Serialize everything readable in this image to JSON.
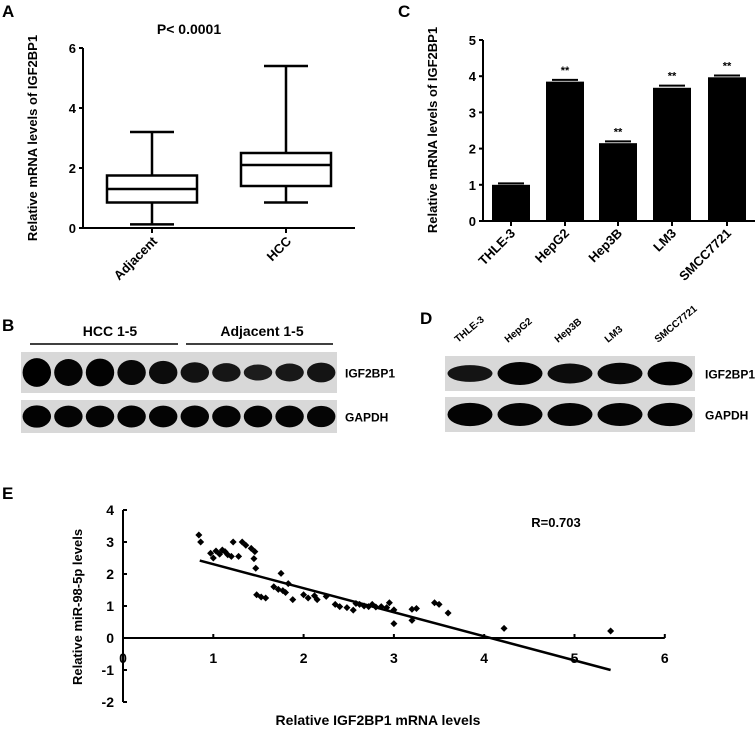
{
  "panels": {
    "A": {
      "letter": "A"
    },
    "B": {
      "letter": "B"
    },
    "C": {
      "letter": "C"
    },
    "D": {
      "letter": "D"
    },
    "E": {
      "letter": "E"
    }
  },
  "chart_data": [
    {
      "panel": "A",
      "type": "box",
      "title": "P< 0.0001",
      "xlabel": "",
      "ylabel": "Relative mRNA levels of IGF2BP1",
      "ylim": [
        0,
        6
      ],
      "yticks": [
        0,
        2,
        4,
        6
      ],
      "categories": [
        "Adjacent",
        "HCC"
      ],
      "boxes": [
        {
          "name": "Adjacent",
          "min": 0.12,
          "q1": 0.85,
          "median": 1.3,
          "q3": 1.75,
          "max": 3.2
        },
        {
          "name": "HCC",
          "min": 0.85,
          "q1": 1.4,
          "median": 2.1,
          "q3": 2.5,
          "max": 5.4
        }
      ]
    },
    {
      "panel": "C",
      "type": "bar",
      "title": "",
      "xlabel": "",
      "ylabel": "Relative mRNA levels of IGF2BP1",
      "ylim": [
        0,
        5
      ],
      "yticks": [
        0,
        1,
        2,
        3,
        4,
        5
      ],
      "categories": [
        "THLE-3",
        "HepG2",
        "Hep3B",
        "LM3",
        "SMCC7721"
      ],
      "values": [
        1.0,
        3.85,
        2.15,
        3.68,
        3.97
      ],
      "errors": [
        0.04,
        0.05,
        0.05,
        0.06,
        0.05
      ],
      "annotations": [
        "",
        "**",
        "**",
        "**",
        "**"
      ]
    },
    {
      "panel": "B",
      "type": "western_blot",
      "group_labels": [
        "HCC 1-5",
        "Adjacent 1-5"
      ],
      "rows": [
        {
          "label": "IGF2BP1",
          "intensities": [
            1.0,
            0.9,
            0.95,
            0.8,
            0.7,
            0.55,
            0.45,
            0.3,
            0.4,
            0.5
          ]
        },
        {
          "label": "GAPDH",
          "intensities": [
            0.95,
            0.9,
            0.9,
            0.92,
            0.9,
            0.92,
            0.9,
            0.9,
            0.9,
            0.88
          ]
        }
      ]
    },
    {
      "panel": "D",
      "type": "western_blot",
      "lane_labels": [
        "THLE-3",
        "HepG2",
        "Hep3B",
        "LM3",
        "SMCC7721"
      ],
      "rows": [
        {
          "label": "IGF2BP1",
          "intensities": [
            0.5,
            0.9,
            0.7,
            0.8,
            0.95
          ]
        },
        {
          "label": "GAPDH",
          "intensities": [
            0.92,
            0.9,
            0.9,
            0.9,
            0.92
          ]
        }
      ]
    },
    {
      "panel": "E",
      "type": "scatter",
      "title": "",
      "annotation": "R=0.703",
      "xlabel": "Relative IGF2BP1 mRNA levels",
      "ylabel": "Relative miR-98-5p levels",
      "xlim": [
        0,
        6
      ],
      "ylim": [
        -2,
        4
      ],
      "xticks": [
        0,
        1,
        2,
        3,
        4,
        5,
        6
      ],
      "yticks": [
        -2,
        -1,
        0,
        1,
        2,
        3,
        4
      ],
      "trendline": {
        "x1": 0.85,
        "y1": 2.42,
        "x2": 5.4,
        "y2": -1.0
      },
      "points": [
        [
          0.84,
          3.22
        ],
        [
          0.86,
          3.0
        ],
        [
          0.97,
          2.65
        ],
        [
          1.0,
          2.5
        ],
        [
          1.03,
          2.72
        ],
        [
          1.07,
          2.62
        ],
        [
          1.1,
          2.75
        ],
        [
          1.13,
          2.7
        ],
        [
          1.16,
          2.6
        ],
        [
          1.2,
          2.55
        ],
        [
          1.22,
          3.0
        ],
        [
          1.28,
          2.55
        ],
        [
          1.32,
          3.0
        ],
        [
          1.36,
          2.9
        ],
        [
          1.42,
          2.8
        ],
        [
          1.46,
          2.7
        ],
        [
          1.45,
          2.48
        ],
        [
          1.47,
          2.18
        ],
        [
          1.48,
          1.35
        ],
        [
          1.53,
          1.28
        ],
        [
          1.58,
          1.25
        ],
        [
          1.67,
          1.6
        ],
        [
          1.72,
          1.52
        ],
        [
          1.77,
          1.48
        ],
        [
          1.8,
          1.42
        ],
        [
          1.75,
          2.02
        ],
        [
          1.83,
          1.7
        ],
        [
          1.88,
          1.2
        ],
        [
          2.0,
          1.35
        ],
        [
          2.05,
          1.25
        ],
        [
          2.12,
          1.32
        ],
        [
          2.15,
          1.2
        ],
        [
          2.25,
          1.3
        ],
        [
          2.35,
          1.05
        ],
        [
          2.4,
          0.98
        ],
        [
          2.48,
          0.95
        ],
        [
          2.55,
          0.87
        ],
        [
          2.58,
          1.08
        ],
        [
          2.62,
          1.05
        ],
        [
          2.67,
          1.0
        ],
        [
          2.72,
          0.98
        ],
        [
          2.76,
          1.05
        ],
        [
          2.8,
          0.97
        ],
        [
          2.86,
          0.98
        ],
        [
          2.92,
          0.95
        ],
        [
          2.95,
          1.1
        ],
        [
          3.0,
          0.88
        ],
        [
          3.0,
          0.45
        ],
        [
          3.2,
          0.55
        ],
        [
          3.2,
          0.9
        ],
        [
          3.25,
          0.92
        ],
        [
          3.45,
          1.1
        ],
        [
          3.5,
          1.05
        ],
        [
          3.6,
          0.78
        ],
        [
          4.22,
          0.3
        ],
        [
          5.4,
          0.22
        ]
      ]
    }
  ]
}
